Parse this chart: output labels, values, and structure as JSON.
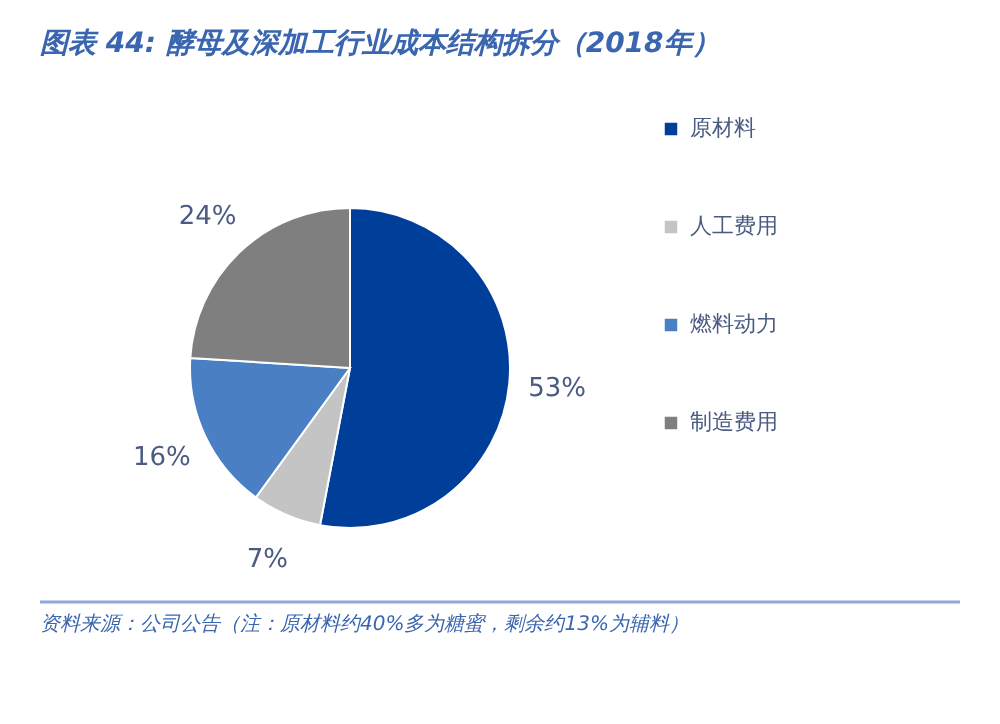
{
  "chart_data": {
    "type": "pie",
    "title": "图表 44: 酵母及深加工行业成本结构拆分（2018年）",
    "categories": [
      "原材料",
      "人工费用",
      "燃料动力",
      "制造费用"
    ],
    "values": [
      53,
      7,
      16,
      24
    ],
    "colors": [
      "#003f99",
      "#c4c4c4",
      "#4a7fc4",
      "#7f7f7f"
    ],
    "value_labels": [
      "53%",
      "7%",
      "16%",
      "24%"
    ],
    "legend": "right",
    "annotations": [
      "资料来源：公司公告（注：原材料约40%多为糖蜜，剩余约13%为辅料）"
    ]
  }
}
